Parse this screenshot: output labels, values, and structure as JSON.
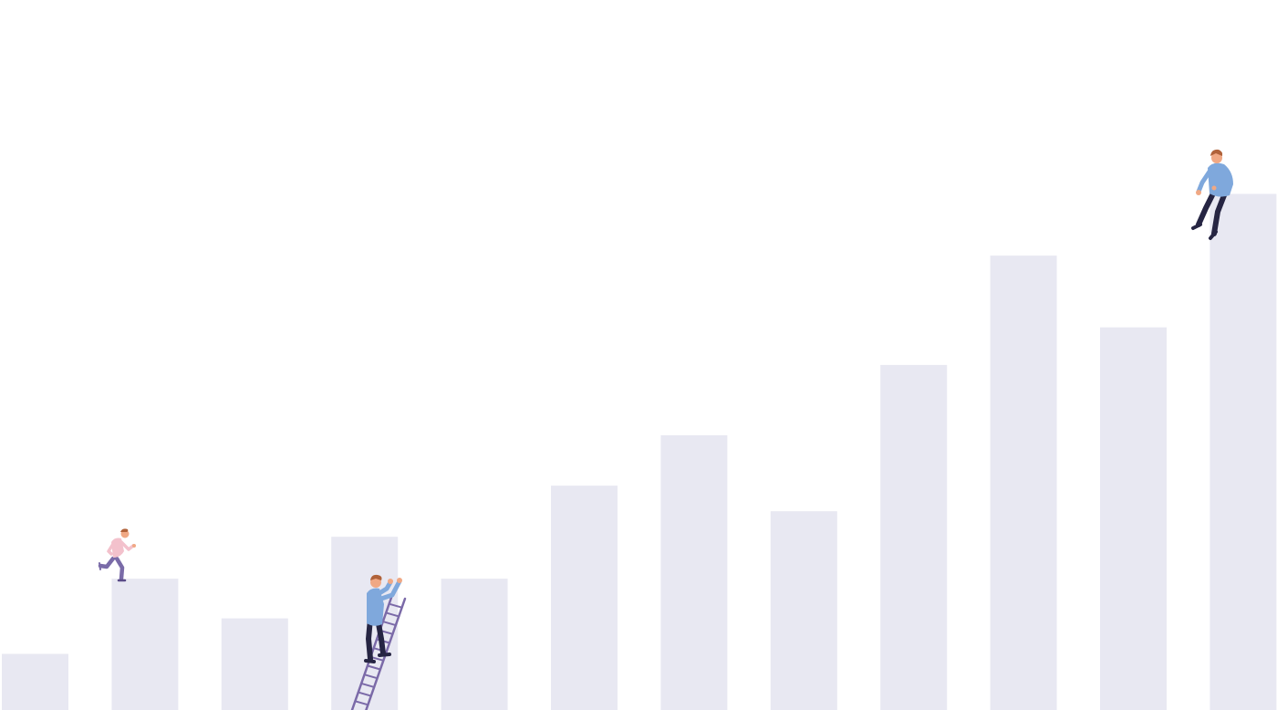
{
  "illustration": {
    "subject": "growth-bars-with-people",
    "colors": {
      "background": "#ffffff",
      "bar": "#e8e8f2",
      "ladder": "#7b6aa8",
      "shirt_blue": "#7fa8dc",
      "shirt_pink": "#f3c1cc",
      "pants_dark": "#262543",
      "pants_purple": "#7a6ba8",
      "skin": "#f0a884",
      "hair": "#b0623a"
    },
    "bars": [
      {
        "level": 0.079
      },
      {
        "level": 0.185
      },
      {
        "level": 0.129
      },
      {
        "level": 0.244
      },
      {
        "level": 0.185
      },
      {
        "level": 0.316
      },
      {
        "level": 0.387
      },
      {
        "level": 0.28
      },
      {
        "level": 0.486
      },
      {
        "level": 0.64
      },
      {
        "level": 0.539
      },
      {
        "level": 0.727
      }
    ],
    "figures": [
      {
        "name": "running-person",
        "pose": "running",
        "on_bar": 1
      },
      {
        "name": "climbing-person",
        "pose": "climbing-ladder",
        "on_bar": 3
      },
      {
        "name": "sitting-person",
        "pose": "sitting",
        "on_bar": 11
      }
    ]
  }
}
